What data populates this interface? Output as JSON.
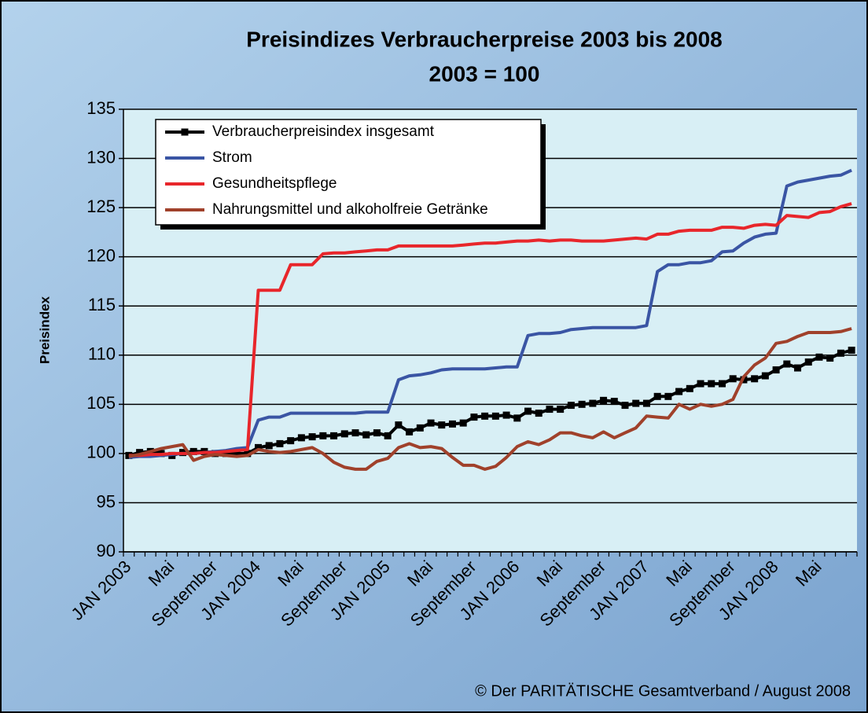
{
  "chart_data": {
    "type": "line",
    "title": "Preisindizes Verbraucherpreise 2003 bis 2008",
    "subtitle": "2003 = 100",
    "y_label": "Preisindex",
    "source": "©  Der PARITÄTISCHE Gesamtverband / August 2008",
    "categories": [
      "JAN 2003",
      null,
      null,
      null,
      "Mai",
      null,
      null,
      null,
      "September",
      null,
      null,
      null,
      "JAN 2004",
      null,
      null,
      null,
      "Mai",
      null,
      null,
      null,
      "September",
      null,
      null,
      null,
      "JAN 2005",
      null,
      null,
      null,
      "Mai",
      null,
      null,
      null,
      "September",
      null,
      null,
      null,
      "JAN 2006",
      null,
      null,
      null,
      "Mai",
      null,
      null,
      null,
      "September",
      null,
      null,
      null,
      "JAN 2007",
      null,
      null,
      null,
      "Mai",
      null,
      null,
      null,
      "September",
      null,
      null,
      null,
      "JAN 2008",
      null,
      null,
      null,
      "Mai",
      null,
      null,
      null
    ],
    "series": [
      {
        "name": "Verbraucherpreisindex insgesamt",
        "color": "#000000",
        "marker": "square",
        "values": [
          99.8,
          100.1,
          100.2,
          100.0,
          99.8,
          100.1,
          100.2,
          100.2,
          100.0,
          100.0,
          100.0,
          100.0,
          100.6,
          100.8,
          101.0,
          101.3,
          101.6,
          101.7,
          101.8,
          101.8,
          102.0,
          102.1,
          101.9,
          102.1,
          101.8,
          102.9,
          102.2,
          102.6,
          103.1,
          102.9,
          103.0,
          103.1,
          103.7,
          103.8,
          103.8,
          103.9,
          103.6,
          104.3,
          104.1,
          104.5,
          104.5,
          104.9,
          105.0,
          105.1,
          105.4,
          105.3,
          104.9,
          105.1,
          105.1,
          105.8,
          105.8,
          106.3,
          106.6,
          107.1,
          107.1,
          107.1,
          107.6,
          107.5,
          107.6,
          107.9,
          108.5,
          109.1,
          108.7,
          109.3,
          109.8,
          109.7,
          110.2,
          110.5
        ]
      },
      {
        "name": "Strom",
        "color": "#3a55a4",
        "marker": "none",
        "values": [
          99.6,
          99.7,
          99.7,
          99.8,
          99.9,
          100.0,
          100.0,
          100.1,
          100.2,
          100.3,
          100.5,
          100.6,
          103.4,
          103.7,
          103.7,
          104.1,
          104.1,
          104.1,
          104.1,
          104.1,
          104.1,
          104.1,
          104.2,
          104.2,
          104.2,
          107.5,
          107.9,
          108.0,
          108.2,
          108.5,
          108.6,
          108.6,
          108.6,
          108.6,
          108.7,
          108.8,
          108.8,
          112.0,
          112.2,
          112.2,
          112.3,
          112.6,
          112.7,
          112.8,
          112.8,
          112.8,
          112.8,
          112.8,
          113.0,
          118.5,
          119.2,
          119.2,
          119.4,
          119.4,
          119.6,
          120.5,
          120.6,
          121.4,
          122.0,
          122.3,
          122.4,
          127.2,
          127.6,
          127.8,
          128.0,
          128.2,
          128.3,
          128.8
        ]
      },
      {
        "name": "Gesundheitspflege",
        "color": "#e8262b",
        "marker": "none",
        "values": [
          99.8,
          99.8,
          99.9,
          99.9,
          100.0,
          100.0,
          100.0,
          100.1,
          100.1,
          100.2,
          100.3,
          100.4,
          116.6,
          116.6,
          116.6,
          119.2,
          119.2,
          119.2,
          120.3,
          120.4,
          120.4,
          120.5,
          120.6,
          120.7,
          120.7,
          121.1,
          121.1,
          121.1,
          121.1,
          121.1,
          121.1,
          121.2,
          121.3,
          121.4,
          121.4,
          121.5,
          121.6,
          121.6,
          121.7,
          121.6,
          121.7,
          121.7,
          121.6,
          121.6,
          121.6,
          121.7,
          121.8,
          121.9,
          121.8,
          122.3,
          122.3,
          122.6,
          122.7,
          122.7,
          122.7,
          123.0,
          123.0,
          122.9,
          123.2,
          123.3,
          123.2,
          124.2,
          124.1,
          124.0,
          124.5,
          124.6,
          125.1,
          125.4
        ]
      },
      {
        "name": "Nahrungsmittel und alkoholfreie Getränke",
        "color": "#a0412b",
        "marker": "none",
        "values": [
          99.7,
          99.9,
          100.2,
          100.5,
          100.7,
          100.9,
          99.3,
          99.7,
          99.9,
          99.8,
          99.7,
          99.8,
          100.4,
          100.2,
          100.1,
          100.2,
          100.4,
          100.6,
          100.0,
          99.1,
          98.6,
          98.4,
          98.4,
          99.2,
          99.5,
          100.6,
          101.0,
          100.6,
          100.7,
          100.5,
          99.6,
          98.8,
          98.8,
          98.4,
          98.7,
          99.6,
          100.7,
          101.2,
          100.9,
          101.4,
          102.1,
          102.1,
          101.8,
          101.6,
          102.2,
          101.6,
          102.1,
          102.6,
          103.8,
          103.7,
          103.6,
          105.0,
          104.5,
          105.0,
          104.8,
          105.0,
          105.5,
          107.8,
          109.0,
          109.7,
          111.2,
          111.4,
          111.9,
          112.3,
          112.3,
          112.3,
          112.4,
          112.7
        ]
      }
    ],
    "ylim": [
      90,
      135
    ],
    "yticks": [
      90,
      95,
      100,
      105,
      110,
      115,
      120,
      125,
      130,
      135
    ],
    "grid": true,
    "legend": "upper left"
  }
}
